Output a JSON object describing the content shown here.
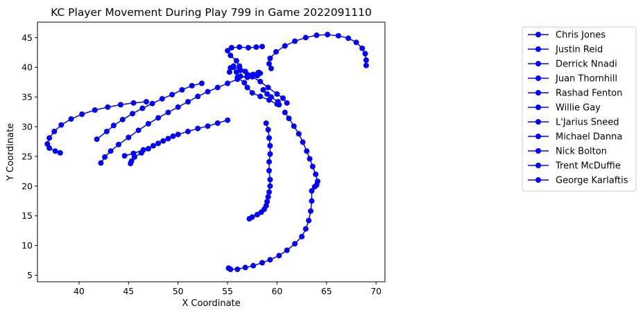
{
  "chart_data": {
    "type": "line",
    "title": "KC Player Movement During Play 799 in Game 2022091110",
    "xlabel": "X Coordinate",
    "ylabel": "Y Coordinate",
    "xlim": [
      35.8,
      70.9
    ],
    "ylim": [
      3.9,
      47.6
    ],
    "x_ticks": [
      40,
      45,
      50,
      55,
      60,
      65,
      70
    ],
    "y_ticks": [
      5,
      10,
      15,
      20,
      25,
      30,
      35,
      40,
      45
    ],
    "grid": false,
    "legend_position": "outside-right",
    "marker": "circle",
    "color": "#0000ff",
    "series": [
      {
        "name": "Chris Jones",
        "x": [
          56.3,
          57.0,
          57.5,
          58.2,
          58.3,
          58.0,
          57.6,
          57.1,
          56.3,
          55.6,
          55.3,
          55.2
        ],
        "y": [
          38.5,
          38.3,
          38.7,
          39.1,
          39.0,
          38.6,
          38.8,
          38.7,
          39.5,
          40.2,
          39.9,
          39.2
        ]
      },
      {
        "name": "Justin Reid",
        "x": [
          55.6,
          55.9,
          56.0,
          56.7,
          57.0,
          57.5,
          58.3,
          59.2,
          60.0,
          60.2,
          60.1,
          59.4,
          59.0,
          58.6
        ],
        "y": [
          40.0,
          39.2,
          38.3,
          37.4,
          36.6,
          35.7,
          35.1,
          34.5,
          33.8,
          33.7,
          34.2,
          35.0,
          35.5,
          36.2
        ]
      },
      {
        "name": "Derrick Nnadi",
        "x": [
          59.4,
          59.2,
          59.3,
          59.9,
          60.8,
          61.8,
          62.9,
          64.0,
          65.1,
          66.2,
          67.2,
          68.0,
          68.6,
          68.9,
          69.0,
          69.0
        ],
        "y": [
          39.8,
          40.6,
          41.5,
          42.6,
          43.6,
          44.4,
          45.0,
          45.4,
          45.5,
          45.3,
          44.9,
          44.2,
          43.2,
          42.3,
          41.2,
          40.3
        ]
      },
      {
        "name": "Juan Thornhill",
        "x": [
          58.9,
          59.1,
          59.2,
          59.3,
          59.3,
          59.2,
          59.2,
          59.3,
          59.3,
          59.2,
          59.1,
          59.0,
          58.9,
          58.7,
          58.4,
          58.0,
          57.5,
          57.2
        ],
        "y": [
          30.6,
          29.5,
          28.1,
          26.8,
          25.4,
          24.1,
          22.6,
          21.1,
          20.0,
          19.0,
          18.2,
          17.4,
          16.7,
          16.1,
          15.6,
          15.2,
          14.8,
          14.5
        ]
      },
      {
        "name": "Rashad Fenton",
        "x": [
          60.8,
          61.2,
          61.7,
          62.2,
          62.6,
          63.0,
          63.3,
          63.6,
          63.9,
          64.1,
          64.0,
          63.8
        ],
        "y": [
          32.4,
          31.4,
          30.1,
          28.8,
          27.4,
          25.9,
          24.6,
          23.3,
          22.0,
          20.8,
          20.2,
          19.9
        ]
      },
      {
        "name": "Willie Gay",
        "x": [
          63.5,
          63.5,
          63.4,
          63.2,
          62.9,
          62.5,
          61.8,
          61.0,
          60.2,
          59.3,
          58.5,
          57.6,
          56.8,
          56.0,
          55.3,
          55.1
        ],
        "y": [
          19.2,
          17.5,
          15.8,
          14.2,
          12.8,
          11.5,
          10.3,
          9.2,
          8.3,
          7.6,
          7.1,
          6.6,
          6.3,
          6.0,
          6.0,
          6.2
        ]
      },
      {
        "name": "L'Jarius Sneed",
        "x": [
          58.5,
          57.9,
          57.1,
          56.2,
          55.4,
          55.0,
          55.3,
          55.9,
          56.2,
          56.8,
          57.5,
          58.3,
          59.1,
          60.0,
          60.6,
          61.0
        ],
        "y": [
          43.5,
          43.4,
          43.3,
          43.4,
          43.3,
          42.8,
          42.0,
          41.1,
          40.2,
          39.3,
          38.4,
          37.6,
          36.6,
          35.5,
          34.8,
          34.0
        ]
      },
      {
        "name": "Michael Danna",
        "x": [
          55.0,
          54.0,
          53.0,
          52.0,
          51.0,
          50.0,
          49.0,
          48.0,
          47.0,
          46.3,
          45.6,
          45.3,
          45.2
        ],
        "y": [
          31.1,
          30.6,
          30.1,
          29.7,
          29.2,
          28.7,
          28.0,
          27.2,
          26.3,
          25.6,
          24.9,
          24.2,
          23.8
        ]
      },
      {
        "name": "Nick Bolton",
        "x": [
          58.1,
          57.0,
          56.0,
          55.0,
          54.0,
          53.0,
          52.0,
          51.0,
          50.0,
          49.0,
          48.0,
          47.0,
          46.0,
          45.0,
          44.0,
          43.2,
          42.6,
          42.2
        ],
        "y": [
          39.1,
          38.6,
          38.0,
          37.3,
          36.6,
          35.9,
          35.1,
          34.2,
          33.3,
          32.4,
          31.5,
          30.5,
          29.4,
          28.2,
          27.0,
          25.9,
          24.9,
          23.9
        ]
      },
      {
        "name": "Trent McDuffie",
        "x": [
          52.4,
          51.4,
          50.4,
          49.4,
          48.4,
          47.4,
          46.4,
          45.4,
          44.4,
          43.5,
          42.8,
          41.8
        ],
        "y": [
          37.3,
          36.9,
          36.2,
          35.4,
          34.7,
          33.9,
          33.1,
          32.2,
          31.2,
          30.2,
          29.2,
          27.9
        ]
      },
      {
        "name": "George Karlaftis",
        "x": [
          46.8,
          45.5,
          44.2,
          42.9,
          41.6,
          40.3,
          39.2,
          38.2,
          37.5,
          37.0,
          36.8,
          37.0,
          37.6,
          38.1
        ],
        "y": [
          34.2,
          34.0,
          33.7,
          33.3,
          32.8,
          32.1,
          31.3,
          30.3,
          29.2,
          28.1,
          27.1,
          26.4,
          25.9,
          25.6
        ]
      },
      {
        "name": "",
        "x": [
          49.5,
          48.5,
          47.5,
          46.5,
          45.5,
          44.6
        ],
        "y": [
          28.4,
          27.6,
          26.8,
          26.1,
          25.5,
          25.1
        ]
      }
    ]
  }
}
